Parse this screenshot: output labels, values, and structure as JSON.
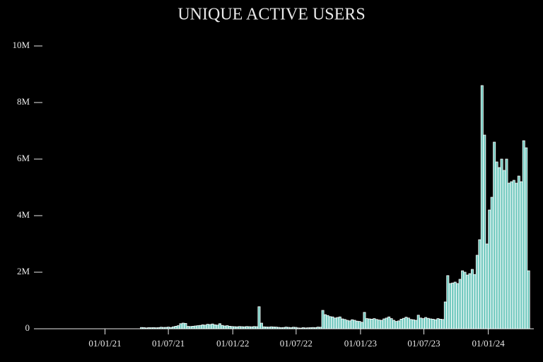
{
  "chart_data": {
    "type": "bar",
    "title": "UNIQUE ACTIVE USERS",
    "color": "#72c9bf",
    "edge_color": "#ffffff",
    "xlim": [
      "12/06/20",
      "10/05/24"
    ],
    "xticks": [
      "01/01/21",
      "01/07/21",
      "01/01/22",
      "01/07/22",
      "01/01/23",
      "01/07/23",
      "01/01/24"
    ],
    "ylim": [
      0,
      10000000
    ],
    "yticks": [
      0,
      {
        "value": 2000000,
        "label": "2M"
      },
      {
        "value": 4000000,
        "label": "4M"
      },
      {
        "value": 6000000,
        "label": "6M"
      },
      {
        "value": 8000000,
        "label": "8M"
      },
      {
        "value": 10000000,
        "label": "10M"
      }
    ],
    "x": [
      "12/04/21",
      "19/04/21",
      "26/04/21",
      "03/05/21",
      "10/05/21",
      "17/05/21",
      "24/05/21",
      "31/05/21",
      "07/06/21",
      "14/06/21",
      "21/06/21",
      "28/06/21",
      "05/07/21",
      "12/07/21",
      "19/07/21",
      "26/07/21",
      "02/08/21",
      "09/08/21",
      "16/08/21",
      "23/08/21",
      "30/08/21",
      "06/09/21",
      "13/09/21",
      "20/09/21",
      "27/09/21",
      "04/10/21",
      "11/10/21",
      "18/10/21",
      "25/10/21",
      "01/11/21",
      "08/11/21",
      "15/11/21",
      "22/11/21",
      "29/11/21",
      "06/12/21",
      "13/12/21",
      "20/12/21",
      "27/12/21",
      "03/01/22",
      "10/01/22",
      "17/01/22",
      "24/01/22",
      "31/01/22",
      "07/02/22",
      "14/02/22",
      "21/02/22",
      "28/02/22",
      "07/03/22",
      "14/03/22",
      "21/03/22",
      "28/03/22",
      "04/04/22",
      "11/04/22",
      "18/04/22",
      "25/04/22",
      "02/05/22",
      "09/05/22",
      "16/05/22",
      "23/05/22",
      "30/05/22",
      "06/06/22",
      "13/06/22",
      "20/06/22",
      "27/06/22",
      "04/07/22",
      "11/07/22",
      "18/07/22",
      "25/07/22",
      "01/08/22",
      "08/08/22",
      "15/08/22",
      "22/08/22",
      "29/08/22",
      "05/09/22",
      "12/09/22",
      "19/09/22",
      "26/09/22",
      "03/10/22",
      "10/10/22",
      "17/10/22",
      "24/10/22",
      "31/10/22",
      "07/11/22",
      "14/11/22",
      "21/11/22",
      "28/11/22",
      "05/12/22",
      "12/12/22",
      "19/12/22",
      "26/12/22",
      "02/01/23",
      "09/01/23",
      "16/01/23",
      "23/01/23",
      "30/01/23",
      "06/02/23",
      "13/02/23",
      "20/02/23",
      "27/02/23",
      "06/03/23",
      "13/03/23",
      "20/03/23",
      "27/03/23",
      "03/04/23",
      "10/04/23",
      "17/04/23",
      "24/04/23",
      "01/05/23",
      "08/05/23",
      "15/05/23",
      "22/05/23",
      "29/05/23",
      "05/06/23",
      "12/06/23",
      "19/06/23",
      "26/06/23",
      "03/07/23",
      "10/07/23",
      "17/07/23",
      "24/07/23",
      "31/07/23",
      "07/08/23",
      "14/08/23",
      "21/08/23",
      "28/08/23",
      "04/09/23",
      "11/09/23",
      "18/09/23",
      "25/09/23",
      "02/10/23",
      "09/10/23",
      "16/10/23",
      "23/10/23",
      "30/10/23",
      "06/11/23",
      "13/11/23",
      "20/11/23",
      "27/11/23",
      "04/12/23",
      "11/12/23",
      "18/12/23",
      "25/12/23",
      "01/01/24",
      "08/01/24",
      "15/01/24",
      "22/01/24",
      "29/01/24",
      "05/02/24",
      "12/02/24",
      "19/02/24",
      "26/02/24",
      "04/03/24",
      "11/03/24",
      "18/03/24",
      "25/03/24",
      "01/04/24",
      "08/04/24",
      "15/04/24",
      "22/04/24"
    ],
    "values": [
      45000,
      42000,
      30000,
      40000,
      38000,
      42000,
      35000,
      40000,
      55000,
      48000,
      50000,
      60000,
      45000,
      70000,
      90000,
      110000,
      180000,
      200000,
      190000,
      85000,
      80000,
      90000,
      100000,
      110000,
      120000,
      140000,
      130000,
      160000,
      150000,
      170000,
      140000,
      130000,
      180000,
      120000,
      100000,
      110000,
      90000,
      80000,
      75000,
      70000,
      80000,
      75000,
      70000,
      80000,
      75000,
      70000,
      80000,
      75000,
      780000,
      200000,
      70000,
      65000,
      60000,
      70000,
      65000,
      60000,
      50000,
      40000,
      45000,
      60000,
      50000,
      40000,
      55000,
      50000,
      30000,
      25000,
      40000,
      30000,
      35000,
      40000,
      45000,
      40000,
      60000,
      55000,
      650000,
      500000,
      470000,
      430000,
      420000,
      380000,
      400000,
      420000,
      350000,
      330000,
      300000,
      280000,
      320000,
      300000,
      270000,
      260000,
      230000,
      580000,
      360000,
      350000,
      340000,
      360000,
      330000,
      310000,
      300000,
      350000,
      380000,
      420000,
      360000,
      300000,
      260000,
      280000,
      340000,
      370000,
      410000,
      380000,
      330000,
      320000,
      300000,
      480000,
      380000,
      360000,
      400000,
      370000,
      350000,
      340000,
      320000,
      360000,
      340000,
      330000,
      950000,
      1880000,
      1600000,
      1620000,
      1650000,
      1600000,
      1750000,
      2050000,
      2000000,
      1900000,
      1950000,
      2100000,
      1920000,
      2600000,
      3150000,
      8600000,
      6850000,
      3000000,
      4200000,
      4650000,
      6600000,
      5900000,
      5700000,
      6000000,
      5600000,
      6000000,
      5150000,
      5200000,
      5250000,
      5150000,
      5400000,
      5200000,
      6650000,
      6400000,
      2050000
    ]
  }
}
